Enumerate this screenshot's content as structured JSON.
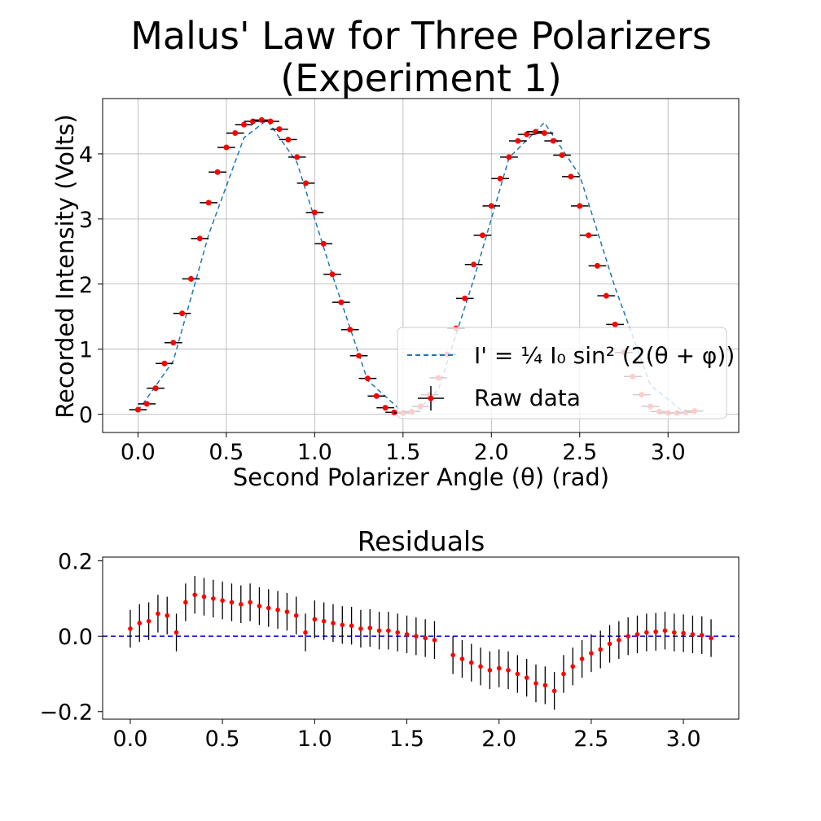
{
  "chart_data": [
    {
      "type": "scatter",
      "title": [
        "Malus' Law for Three Polarizers",
        "(Experiment 1)"
      ],
      "xlabel": "Second Polarizer Angle (θ) (rad)",
      "ylabel": "Recorded Intensity (Volts)",
      "xlim": [
        -0.2,
        3.4
      ],
      "ylim": [
        -0.28,
        4.85
      ],
      "xticks": [
        0.0,
        0.5,
        1.0,
        1.5,
        2.0,
        2.5,
        3.0
      ],
      "xtick_labels": [
        "0.0",
        "0.5",
        "1.0",
        "1.5",
        "2.0",
        "2.5",
        "3.0"
      ],
      "yticks": [
        0,
        1,
        2,
        3,
        4
      ],
      "ytick_labels": [
        "0",
        "1",
        "2",
        "3",
        "4"
      ],
      "grid": true,
      "legend_position": "center-right",
      "colors": {
        "data": "#ff0000",
        "errorbar": "#000000",
        "fit": "#1f77b4"
      },
      "series": [
        {
          "name": "I' = ¼ I₀ sin² (2(θ + φ))",
          "kind": "dashed-line",
          "x": [
            0.0,
            0.2,
            0.4,
            0.6,
            0.73,
            0.9,
            1.1,
            1.3,
            1.5,
            1.56,
            1.7,
            1.9,
            2.1,
            2.3,
            2.5,
            2.7,
            2.9,
            3.1,
            3.14
          ],
          "y": [
            0.05,
            0.82,
            2.76,
            4.25,
            4.52,
            3.87,
            2.14,
            0.52,
            0.03,
            0.0,
            0.38,
            2.07,
            3.94,
            4.48,
            3.67,
            1.95,
            0.45,
            0.01,
            0.03
          ]
        },
        {
          "name": "Raw data",
          "kind": "points-with-errorbars",
          "x_err": 0.05,
          "x": [
            0.0,
            0.05,
            0.1,
            0.15,
            0.2,
            0.25,
            0.3,
            0.35,
            0.4,
            0.45,
            0.5,
            0.55,
            0.6,
            0.65,
            0.7,
            0.75,
            0.8,
            0.85,
            0.9,
            0.95,
            1.0,
            1.05,
            1.1,
            1.15,
            1.2,
            1.25,
            1.3,
            1.35,
            1.4,
            1.45,
            1.5,
            1.55,
            1.6,
            1.65,
            1.7,
            1.75,
            1.8,
            1.85,
            1.9,
            1.95,
            2.0,
            2.05,
            2.1,
            2.15,
            2.2,
            2.25,
            2.3,
            2.35,
            2.4,
            2.45,
            2.5,
            2.55,
            2.6,
            2.65,
            2.7,
            2.75,
            2.8,
            2.85,
            2.9,
            2.95,
            3.0,
            3.05,
            3.1,
            3.15
          ],
          "y": [
            0.07,
            0.16,
            0.4,
            0.78,
            1.1,
            1.55,
            2.08,
            2.7,
            3.25,
            3.72,
            4.1,
            4.32,
            4.45,
            4.5,
            4.52,
            4.5,
            4.38,
            4.22,
            3.95,
            3.55,
            3.1,
            2.62,
            2.15,
            1.72,
            1.3,
            0.9,
            0.55,
            0.28,
            0.1,
            0.03,
            0.02,
            0.04,
            0.12,
            0.3,
            0.56,
            0.92,
            1.32,
            1.78,
            2.3,
            2.75,
            3.2,
            3.62,
            3.95,
            4.2,
            4.3,
            4.34,
            4.32,
            4.2,
            3.98,
            3.65,
            3.2,
            2.75,
            2.28,
            1.82,
            1.38,
            0.95,
            0.58,
            0.3,
            0.12,
            0.04,
            0.02,
            0.02,
            0.03,
            0.05
          ]
        }
      ]
    },
    {
      "type": "scatter",
      "title": "Residuals",
      "xlim": [
        -0.15,
        3.3
      ],
      "ylim": [
        -0.22,
        0.21
      ],
      "xticks": [
        0.0,
        0.5,
        1.0,
        1.5,
        2.0,
        2.5,
        3.0
      ],
      "xtick_labels": [
        "0.0",
        "0.5",
        "1.0",
        "1.5",
        "2.0",
        "2.5",
        "3.0"
      ],
      "yticks": [
        0.2,
        0.0,
        -0.2
      ],
      "ytick_labels": [
        "0.2",
        "0.0",
        "−0.2"
      ],
      "reference_line": 0.0,
      "colors": {
        "data": "#ff0000",
        "errorbar": "#000000",
        "reference": "#0000cc"
      },
      "series": [
        {
          "name": "",
          "y_err": 0.05,
          "x": [
            0.0,
            0.05,
            0.1,
            0.15,
            0.2,
            0.25,
            0.3,
            0.35,
            0.4,
            0.45,
            0.5,
            0.55,
            0.6,
            0.65,
            0.7,
            0.75,
            0.8,
            0.85,
            0.9,
            0.95,
            1.0,
            1.05,
            1.1,
            1.15,
            1.2,
            1.25,
            1.3,
            1.35,
            1.4,
            1.45,
            1.5,
            1.55,
            1.6,
            1.65,
            1.75,
            1.8,
            1.85,
            1.9,
            1.95,
            2.0,
            2.05,
            2.1,
            2.15,
            2.2,
            2.25,
            2.3,
            2.35,
            2.4,
            2.45,
            2.5,
            2.55,
            2.6,
            2.65,
            2.7,
            2.75,
            2.8,
            2.85,
            2.9,
            2.95,
            3.0,
            3.05,
            3.1,
            3.15
          ],
          "y": [
            0.02,
            0.035,
            0.04,
            0.06,
            0.055,
            0.01,
            0.09,
            0.11,
            0.105,
            0.1,
            0.095,
            0.09,
            0.085,
            0.09,
            0.08,
            0.075,
            0.07,
            0.065,
            0.055,
            0.01,
            0.045,
            0.04,
            0.035,
            0.03,
            0.028,
            0.02,
            0.022,
            0.015,
            0.015,
            0.01,
            0.005,
            0.0,
            -0.005,
            -0.01,
            -0.05,
            -0.06,
            -0.07,
            -0.08,
            -0.09,
            -0.085,
            -0.09,
            -0.1,
            -0.11,
            -0.125,
            -0.13,
            -0.145,
            -0.1,
            -0.08,
            -0.06,
            -0.045,
            -0.035,
            -0.02,
            -0.01,
            0.0,
            0.005,
            0.01,
            0.012,
            0.015,
            0.01,
            0.008,
            0.005,
            0.003,
            -0.005
          ]
        }
      ]
    }
  ]
}
